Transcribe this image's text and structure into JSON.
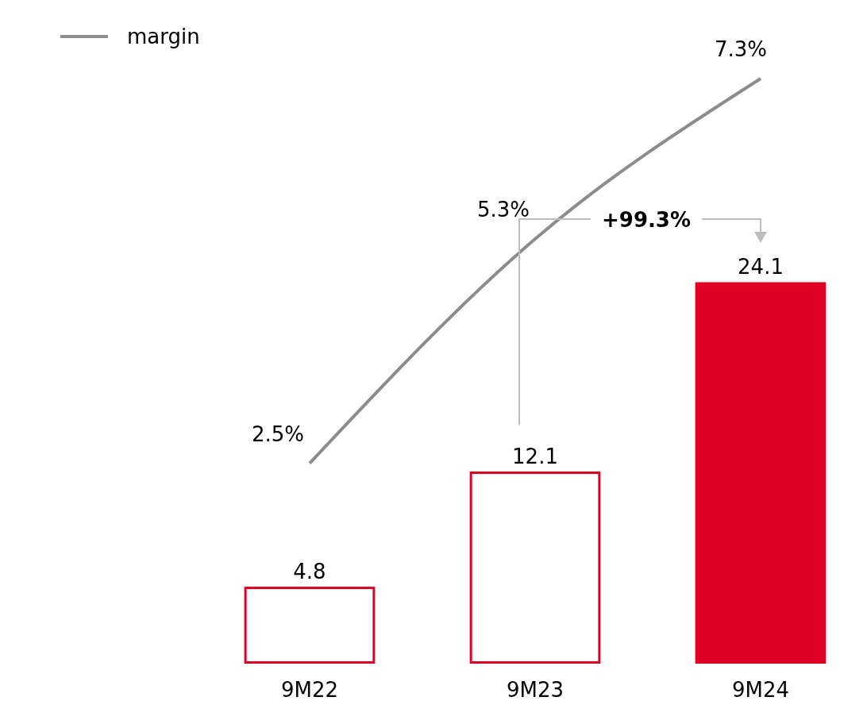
{
  "chart_data": {
    "type": "bar",
    "categories": [
      "9M22",
      "9M23",
      "9M24"
    ],
    "values": [
      4.8,
      12.1,
      24.1
    ],
    "colors": [
      "#ffffff",
      "#ffffff",
      "#e00025"
    ],
    "color": "#e00025",
    "data_labels": true,
    "tick_labels": "x",
    "legend": "top left",
    "series": [
      {
        "name": "margin",
        "type": "line",
        "axis": "y2",
        "color": "#8c8c8c",
        "values": [
          2.5,
          5.3,
          7.3
        ],
        "value_labels": [
          "2.5%",
          "5.3%",
          "7.3%"
        ],
        "marker": "none"
      }
    ],
    "annotations": [
      "+99.3%"
    ]
  }
}
